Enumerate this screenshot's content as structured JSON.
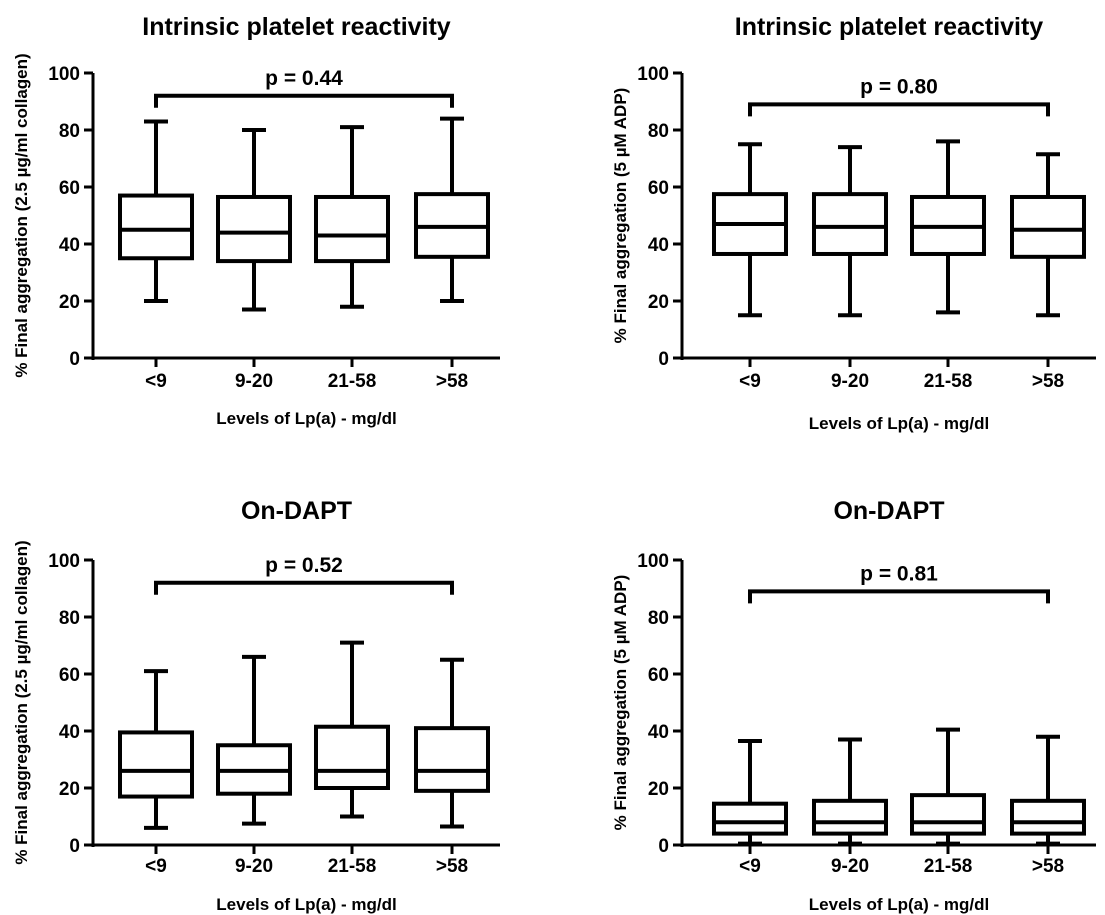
{
  "chart_data": [
    {
      "type": "box",
      "title": "Intrinsic platelet reactivity",
      "xlabel": "Levels of Lp(a) - mg/dl",
      "ylabel": "% Final aggregation (2.5 µg/ml collagen)",
      "categories": [
        "<9",
        "9-20",
        "21-58",
        ">58"
      ],
      "ylim": [
        0,
        100
      ],
      "yticks": [
        0,
        20,
        40,
        60,
        80,
        100
      ],
      "boxes": [
        {
          "min": 20,
          "q1": 35,
          "median": 45,
          "q3": 57,
          "max": 83
        },
        {
          "min": 17,
          "q1": 34,
          "median": 44,
          "q3": 56.5,
          "max": 80
        },
        {
          "min": 18,
          "q1": 34,
          "median": 43,
          "q3": 56.5,
          "max": 81
        },
        {
          "min": 20,
          "q1": 35.5,
          "median": 46,
          "q3": 57.5,
          "max": 84
        }
      ],
      "comparison": {
        "label": "p = 0.44",
        "from": "<9",
        "to": ">58",
        "y": 92
      }
    },
    {
      "type": "box",
      "title": "Intrinsic platelet reactivity",
      "xlabel": "Levels of Lp(a) - mg/dl",
      "ylabel": "% Final aggregation (5 µM ADP)",
      "categories": [
        "<9",
        "9-20",
        "21-58",
        ">58"
      ],
      "ylim": [
        0,
        100
      ],
      "yticks": [
        0,
        20,
        40,
        60,
        80,
        100
      ],
      "boxes": [
        {
          "min": 15,
          "q1": 36.5,
          "median": 47,
          "q3": 57.5,
          "max": 75
        },
        {
          "min": 15,
          "q1": 36.5,
          "median": 46,
          "q3": 57.5,
          "max": 74
        },
        {
          "min": 16,
          "q1": 36.5,
          "median": 46,
          "q3": 56.5,
          "max": 76
        },
        {
          "min": 15,
          "q1": 35.5,
          "median": 45,
          "q3": 56.5,
          "max": 71.5
        }
      ],
      "comparison": {
        "label": "p = 0.80",
        "from": "<9",
        "to": ">58",
        "y": 89
      }
    },
    {
      "type": "box",
      "title": "On-DAPT",
      "xlabel": "Levels of Lp(a) - mg/dl",
      "ylabel": "% Final aggregation (2.5 µg/ml collagen)",
      "categories": [
        "<9",
        "9-20",
        "21-58",
        ">58"
      ],
      "ylim": [
        0,
        100
      ],
      "yticks": [
        0,
        20,
        40,
        60,
        80,
        100
      ],
      "boxes": [
        {
          "min": 6,
          "q1": 17,
          "median": 26,
          "q3": 39.5,
          "max": 61
        },
        {
          "min": 7.5,
          "q1": 18,
          "median": 26,
          "q3": 35,
          "max": 66
        },
        {
          "min": 10,
          "q1": 20,
          "median": 26,
          "q3": 41.5,
          "max": 71
        },
        {
          "min": 6.5,
          "q1": 19,
          "median": 26,
          "q3": 41,
          "max": 65
        }
      ],
      "comparison": {
        "label": "p = 0.52",
        "from": "<9",
        "to": ">58",
        "y": 92
      }
    },
    {
      "type": "box",
      "title": "On-DAPT",
      "xlabel": "Levels of Lp(a) - mg/dl",
      "ylabel": "% Final aggregation (5 µM ADP)",
      "categories": [
        "<9",
        "9-20",
        "21-58",
        ">58"
      ],
      "ylim": [
        0,
        100
      ],
      "yticks": [
        0,
        20,
        40,
        60,
        80,
        100
      ],
      "boxes": [
        {
          "min": 0.5,
          "q1": 4,
          "median": 8,
          "q3": 14.5,
          "max": 36.5
        },
        {
          "min": 0.5,
          "q1": 4,
          "median": 8,
          "q3": 15.5,
          "max": 37
        },
        {
          "min": 0.5,
          "q1": 4,
          "median": 8,
          "q3": 17.5,
          "max": 40.5
        },
        {
          "min": 0.5,
          "q1": 4,
          "median": 8,
          "q3": 15.5,
          "max": 38
        }
      ],
      "comparison": {
        "label": "p = 0.81",
        "from": "<9",
        "to": ">58",
        "y": 89
      }
    }
  ]
}
